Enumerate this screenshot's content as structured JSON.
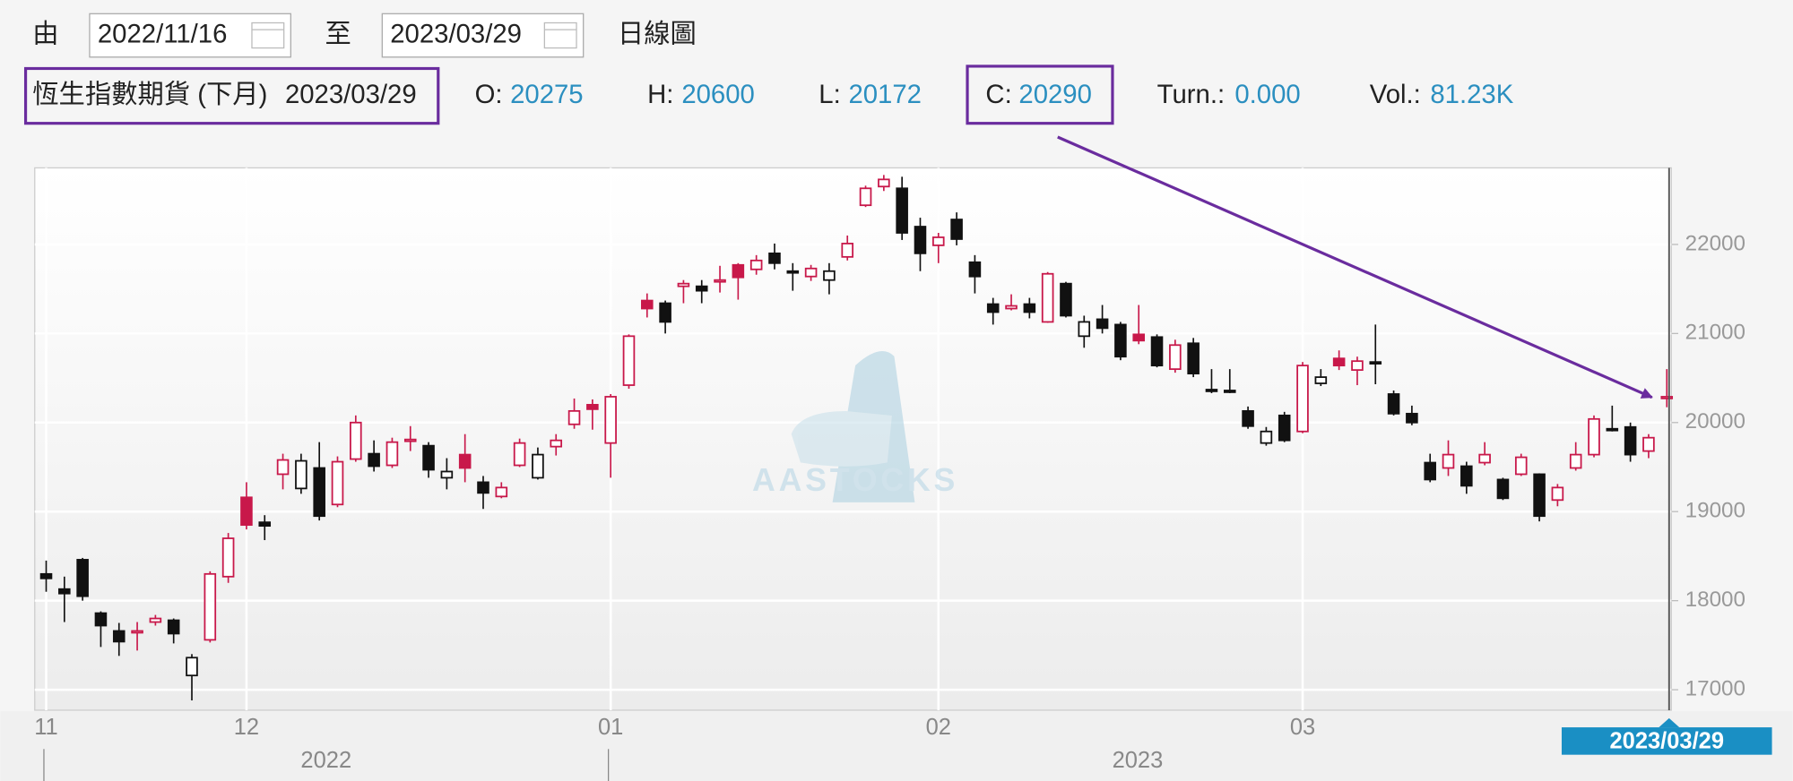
{
  "toolbar": {
    "from_label": "由",
    "date_from": "2022/11/16",
    "to_label": "至",
    "date_to": "2023/03/29",
    "chart_kind": "日線圖"
  },
  "quote": {
    "name": "恆生指數期貨 (下月)",
    "open_label": "O:",
    "high_label": "H:",
    "low_label": "L:",
    "close_label": "C:",
    "turnover_label": "Turn.:",
    "turnover": "0.000",
    "volume_label": "Vol.:",
    "volume": "81.23K"
  },
  "chart_data": {
    "type": "candlestick",
    "open": [
      18300,
      18130,
      18460,
      17860,
      17660,
      17640,
      17760,
      17780,
      17160,
      17560,
      18270,
      19160,
      18880,
      19420,
      19260,
      19490,
      19080,
      19590,
      19650,
      19520,
      19790,
      19740,
      19380,
      19640,
      19330,
      19170,
      19520,
      19380,
      19730,
      19980,
      20200,
      19770,
      20420,
      21370,
      21340,
      21530,
      21530,
      21580,
      21770,
      21720,
      21900,
      21700,
      21640,
      21600,
      21860,
      22440,
      22650,
      22630,
      22200,
      21990,
      22280,
      21800,
      21330,
      21280,
      21330,
      21130,
      21560,
      20970,
      21160,
      21100,
      20990,
      20960,
      20600,
      20890,
      20370,
      20360,
      20130,
      19770,
      20080,
      19900,
      20440,
      20720,
      20590,
      20680,
      20320,
      20100,
      19550,
      19490,
      19510,
      19550,
      19360,
      19420,
      19420,
      19130,
      19490,
      19640,
      19930,
      19950,
      19680,
      20275
    ],
    "high": [
      18450,
      18270,
      18480,
      17880,
      17750,
      17760,
      17840,
      17800,
      17400,
      18330,
      18760,
      19330,
      18960,
      19650,
      19650,
      19780,
      19620,
      20080,
      19800,
      19830,
      19960,
      19780,
      19600,
      19870,
      19400,
      19330,
      19820,
      19720,
      19870,
      20270,
      20260,
      20320,
      20990,
      21450,
      21370,
      21600,
      21600,
      21760,
      21790,
      21880,
      22010,
      21790,
      21770,
      21790,
      22100,
      22660,
      22780,
      22760,
      22300,
      22130,
      22360,
      21880,
      21400,
      21440,
      21400,
      21690,
      21580,
      21200,
      21320,
      21130,
      21320,
      20990,
      20930,
      20950,
      20600,
      20600,
      20180,
      19950,
      20120,
      20680,
      20600,
      20810,
      20740,
      21100,
      20360,
      20190,
      19650,
      19800,
      19560,
      19780,
      19380,
      19650,
      19430,
      19310,
      19780,
      20080,
      20190,
      20000,
      19870,
      20600
    ],
    "low": [
      18100,
      17760,
      18000,
      17480,
      17380,
      17440,
      17720,
      17520,
      16880,
      17530,
      18200,
      18800,
      18680,
      19250,
      19200,
      18900,
      19050,
      19560,
      19450,
      19490,
      19680,
      19380,
      19250,
      19330,
      19030,
      19150,
      19500,
      19360,
      19630,
      19930,
      19920,
      19380,
      20380,
      21180,
      21000,
      21340,
      21340,
      21460,
      21380,
      21660,
      21720,
      21480,
      21590,
      21440,
      21820,
      22420,
      22600,
      22050,
      21700,
      21790,
      21990,
      21450,
      21100,
      21260,
      21170,
      21120,
      21180,
      20840,
      21000,
      20700,
      20880,
      20620,
      20560,
      20510,
      20330,
      20330,
      19930,
      19740,
      19780,
      19880,
      20410,
      20590,
      20420,
      20430,
      20080,
      19970,
      19330,
      19400,
      19200,
      19520,
      19130,
      19400,
      18890,
      19060,
      19460,
      19610,
      19900,
      19560,
      19600,
      20172
    ],
    "close": [
      18250,
      18080,
      18050,
      17720,
      17540,
      17660,
      17800,
      17630,
      17360,
      18300,
      18700,
      18850,
      18840,
      19580,
      19570,
      18950,
      19560,
      20000,
      19510,
      19780,
      19810,
      19470,
      19450,
      19490,
      19210,
      19270,
      19770,
      19640,
      19800,
      20130,
      20150,
      20290,
      20970,
      21280,
      21130,
      21560,
      21480,
      21600,
      21630,
      21820,
      21790,
      21690,
      21730,
      21700,
      22010,
      22630,
      22730,
      22130,
      21900,
      22080,
      22060,
      21640,
      21240,
      21310,
      21240,
      21670,
      21200,
      21130,
      21060,
      20740,
      20920,
      20640,
      20870,
      20550,
      20360,
      20350,
      19960,
      19900,
      19800,
      20640,
      20510,
      20640,
      20690,
      20670,
      20100,
      20000,
      19360,
      19640,
      19290,
      19640,
      19150,
      19610,
      18950,
      19270,
      19640,
      20040,
      19920,
      19640,
      19830,
      20290
    ],
    "last_date": "2023/03/29",
    "xticks": [
      {
        "value": 0,
        "label": "11"
      },
      {
        "value": 11,
        "label": "12"
      },
      {
        "value": 31,
        "label": "01"
      },
      {
        "value": 49,
        "label": "02"
      },
      {
        "value": 69,
        "label": "03"
      }
    ],
    "years": [
      {
        "value": 0,
        "label": "2022"
      },
      {
        "value": 31,
        "label": "2023"
      }
    ],
    "ylim": [
      16770,
      22860
    ],
    "yticks": [
      17000,
      18000,
      19000,
      20000,
      21000,
      22000
    ],
    "grid": true,
    "up_color": "#c8184a",
    "down_color": "#111111",
    "watermark": "AASTOCKS"
  }
}
